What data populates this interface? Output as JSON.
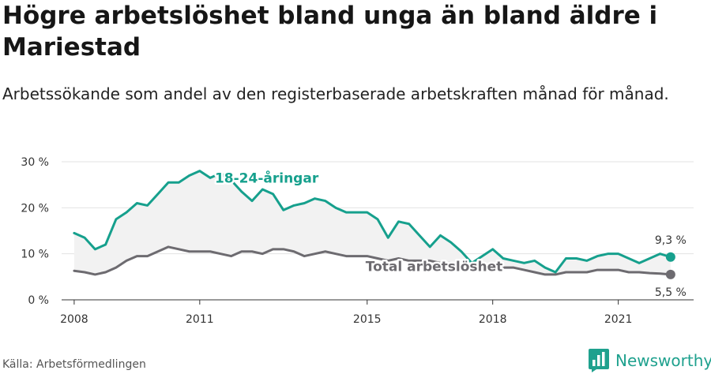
{
  "title": "Högre arbetslöshet bland unga än bland äldre i Mariestad",
  "subtitle": "Arbetssökande som andel av den registerbaserade arbetskraften månad för månad.",
  "source": "Källa: Arbetsförmedlingen",
  "brand": {
    "name": "Newsworthy",
    "icon": "newsworthy-logo-icon"
  },
  "colors": {
    "youth": "#16a08d",
    "total": "#6d6b70",
    "fill": "#f2f2f2",
    "grid": "#e3e3e3"
  },
  "chart_data": {
    "type": "line",
    "x_tick_labels": [
      "2008",
      "2011",
      "2015",
      "2018",
      "2021"
    ],
    "x_ticks": [
      2008,
      2011,
      2015,
      2018,
      2021
    ],
    "xlim": [
      2007.7,
      2022.8
    ],
    "y_tick_labels": [
      "0 %",
      "10 %",
      "20 %",
      "30 %"
    ],
    "y_ticks": [
      0,
      10,
      20,
      30
    ],
    "ylim": [
      0,
      30
    ],
    "grid": true,
    "series": [
      {
        "name": "18-24-åringar",
        "end_label": "9,3 %",
        "x": [
          2008.0,
          2008.25,
          2008.5,
          2008.75,
          2009.0,
          2009.25,
          2009.5,
          2009.75,
          2010.0,
          2010.25,
          2010.5,
          2010.75,
          2011.0,
          2011.25,
          2011.5,
          2011.75,
          2012.0,
          2012.25,
          2012.5,
          2012.75,
          2013.0,
          2013.25,
          2013.5,
          2013.75,
          2014.0,
          2014.25,
          2014.5,
          2014.75,
          2015.0,
          2015.25,
          2015.5,
          2015.75,
          2016.0,
          2016.25,
          2016.5,
          2016.75,
          2017.0,
          2017.25,
          2017.5,
          2017.75,
          2018.0,
          2018.25,
          2018.5,
          2018.75,
          2019.0,
          2019.25,
          2019.5,
          2019.75,
          2020.0,
          2020.25,
          2020.5,
          2020.75,
          2021.0,
          2021.25,
          2021.5,
          2021.75,
          2022.0,
          2022.25
        ],
        "y": [
          14.5,
          13.5,
          11.0,
          12.0,
          17.5,
          19.0,
          21.0,
          20.5,
          23.0,
          25.5,
          25.5,
          27.0,
          28.0,
          26.5,
          27.5,
          26.0,
          23.5,
          21.5,
          24.0,
          23.0,
          19.5,
          20.5,
          21.0,
          22.0,
          21.5,
          20.0,
          19.0,
          19.0,
          19.0,
          17.5,
          13.5,
          17.0,
          16.5,
          14.0,
          11.5,
          14.0,
          12.5,
          10.5,
          8.0,
          9.5,
          11.0,
          9.0,
          8.5,
          8.0,
          8.5,
          7.0,
          6.0,
          9.0,
          9.0,
          8.5,
          9.5,
          10.0,
          10.0,
          9.0,
          8.0,
          9.0,
          10.0,
          9.3
        ]
      },
      {
        "name": "Total arbetslöshet",
        "end_label": "5,5 %",
        "x": [
          2008.0,
          2008.25,
          2008.5,
          2008.75,
          2009.0,
          2009.25,
          2009.5,
          2009.75,
          2010.0,
          2010.25,
          2010.5,
          2010.75,
          2011.0,
          2011.25,
          2011.5,
          2011.75,
          2012.0,
          2012.25,
          2012.5,
          2012.75,
          2013.0,
          2013.25,
          2013.5,
          2013.75,
          2014.0,
          2014.25,
          2014.5,
          2014.75,
          2015.0,
          2015.25,
          2015.5,
          2015.75,
          2016.0,
          2016.25,
          2016.5,
          2016.75,
          2017.0,
          2017.25,
          2017.5,
          2017.75,
          2018.0,
          2018.25,
          2018.5,
          2018.75,
          2019.0,
          2019.25,
          2019.5,
          2019.75,
          2020.0,
          2020.25,
          2020.5,
          2020.75,
          2021.0,
          2021.25,
          2021.5,
          2021.75,
          2022.0,
          2022.25
        ],
        "y": [
          6.3,
          6.0,
          5.5,
          6.0,
          7.0,
          8.5,
          9.5,
          9.5,
          10.5,
          11.5,
          11.0,
          10.5,
          10.5,
          10.5,
          10.0,
          9.5,
          10.5,
          10.5,
          10.0,
          11.0,
          11.0,
          10.5,
          9.5,
          10.0,
          10.5,
          10.0,
          9.5,
          9.5,
          9.5,
          9.0,
          8.5,
          9.0,
          8.5,
          8.5,
          8.5,
          8.0,
          8.0,
          7.5,
          7.0,
          7.5,
          7.5,
          7.0,
          7.0,
          6.5,
          6.0,
          5.5,
          5.5,
          6.0,
          6.0,
          6.0,
          6.5,
          6.5,
          6.5,
          6.0,
          6.0,
          5.8,
          5.7,
          5.5
        ]
      }
    ]
  }
}
